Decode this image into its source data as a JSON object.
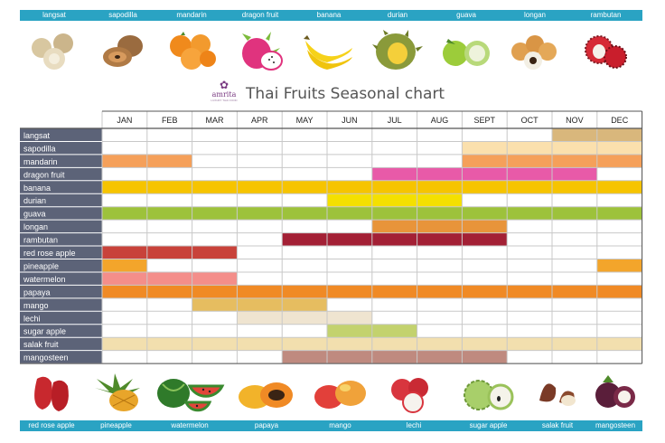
{
  "top_fruits": [
    "langsat",
    "sapodilla",
    "mandarin",
    "dragon fruit",
    "banana",
    "durian",
    "guava",
    "longan",
    "rambutan"
  ],
  "bottom_fruits": [
    "red rose apple",
    "pineapple",
    "watermelon",
    "papaya",
    "mango",
    "lechi",
    "sugar apple",
    "salak fruit",
    "mangosteen"
  ],
  "brand": {
    "name": "amrita",
    "tagline": "LUXURY THAI FOOD"
  },
  "colors": {
    "label_bar": "#2aa3c3",
    "row_label_bg": "#5c6378",
    "grid_line": "#c8c8c8",
    "border": "#555555"
  },
  "chart_data": {
    "type": "table",
    "title": "Thai Fruits Seasonal chart",
    "columns": [
      "JAN",
      "FEB",
      "MAR",
      "APR",
      "MAY",
      "JUN",
      "JUL",
      "AUG",
      "SEPT",
      "OCT",
      "NOV",
      "DEC"
    ],
    "rows": [
      {
        "fruit": "langsat",
        "color": "#d9b77c",
        "months": [
          11,
          12
        ]
      },
      {
        "fruit": "sapodilla",
        "color": "#fbe0ad",
        "months": [
          9,
          10,
          11,
          12
        ]
      },
      {
        "fruit": "mandarin",
        "color": "#f5a05a",
        "months": [
          1,
          2,
          9,
          10,
          11,
          12
        ]
      },
      {
        "fruit": "dragon fruit",
        "color": "#e85aa8",
        "months": [
          7,
          8,
          9,
          10,
          11
        ]
      },
      {
        "fruit": "banana",
        "color": "#f6c400",
        "months": [
          1,
          2,
          3,
          4,
          5,
          6,
          7,
          8,
          9,
          10,
          11,
          12
        ]
      },
      {
        "fruit": "durian",
        "color": "#f4e000",
        "months": [
          6,
          7,
          8
        ]
      },
      {
        "fruit": "guava",
        "color": "#9dc23b",
        "months": [
          1,
          2,
          3,
          4,
          5,
          6,
          7,
          8,
          9,
          10,
          11,
          12
        ]
      },
      {
        "fruit": "longan",
        "color": "#e8943a",
        "months": [
          7,
          8,
          9
        ]
      },
      {
        "fruit": "rambutan",
        "color": "#a32035",
        "months": [
          5,
          6,
          7,
          8,
          9
        ]
      },
      {
        "fruit": "red rose apple",
        "color": "#c8423a",
        "months": [
          1,
          2,
          3
        ]
      },
      {
        "fruit": "pineapple",
        "color": "#f3a52b",
        "months": [
          1,
          12
        ]
      },
      {
        "fruit": "watermelon",
        "color": "#f48e8a",
        "months": [
          1,
          2,
          3
        ]
      },
      {
        "fruit": "papaya",
        "color": "#f08a25",
        "months": [
          1,
          2,
          3,
          4,
          5,
          6,
          7,
          8,
          9,
          10,
          11,
          12
        ]
      },
      {
        "fruit": "mango",
        "color": "#e6bd60",
        "months": [
          3,
          4,
          5
        ]
      },
      {
        "fruit": "lechi",
        "color": "#efe4d0",
        "months": [
          4,
          5,
          6
        ]
      },
      {
        "fruit": "sugar apple",
        "color": "#c3d26e",
        "months": [
          6,
          7
        ]
      },
      {
        "fruit": "salak fruit",
        "color": "#f2dfae",
        "months": [
          1,
          2,
          3,
          4,
          5,
          6,
          7,
          8,
          9,
          10,
          11,
          12
        ]
      },
      {
        "fruit": "mangosteen",
        "color": "#bf8a7f",
        "months": [
          5,
          6,
          7,
          8,
          9
        ]
      }
    ]
  }
}
